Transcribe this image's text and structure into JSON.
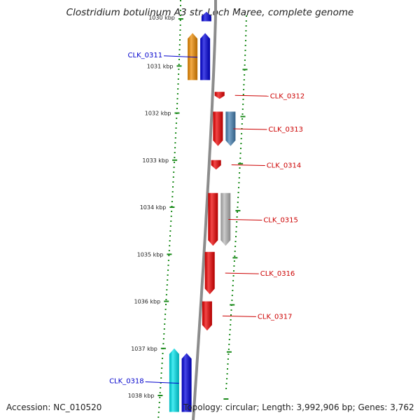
{
  "header": {
    "title": "Clostridium botulinum A3 str. Loch Maree, complete genome"
  },
  "footer": {
    "accession": "Accession: NC_010520",
    "topology": "Topology: circular; Length: 3,992,906 bp; Genes: 3,762"
  },
  "colors": {
    "forward_label": "#0000cc",
    "reverse_label": "#cc0000",
    "backbone": "#8c8c8c",
    "tick_green": "#1a8a1a"
  },
  "map": {
    "ticks": [
      {
        "label": "1030 kbp",
        "kbp": 1030
      },
      {
        "label": "1031 kbp",
        "kbp": 1031
      },
      {
        "label": "1032 kbp",
        "kbp": 1032
      },
      {
        "label": "1033 kbp",
        "kbp": 1033
      },
      {
        "label": "1034 kbp",
        "kbp": 1034
      },
      {
        "label": "1035 kbp",
        "kbp": 1035
      },
      {
        "label": "1036 kbp",
        "kbp": 1036
      },
      {
        "label": "1037 kbp",
        "kbp": 1037
      },
      {
        "label": "1038 kbp",
        "kbp": 1038
      }
    ],
    "genes": [
      {
        "id": "top-forward",
        "strand": "forward",
        "lane": 1,
        "start": 1029.85,
        "end": 1030.05,
        "color": "#0000dd",
        "label": ""
      },
      {
        "id": "orange",
        "strand": "forward",
        "lane": 2,
        "start": 1030.3,
        "end": 1031.3,
        "color": "#f08c00",
        "label": ""
      },
      {
        "id": "CLK_0311",
        "strand": "forward",
        "lane": 1,
        "start": 1030.3,
        "end": 1031.3,
        "color": "#0000dd",
        "label": "CLK_0311"
      },
      {
        "id": "CLK_0312",
        "strand": "reverse",
        "lane": 1,
        "start": 1031.55,
        "end": 1031.7,
        "color": "#ee0000",
        "label": "CLK_0312"
      },
      {
        "id": "CLK_0313",
        "strand": "reverse",
        "lane": 1,
        "start": 1031.97,
        "end": 1032.7,
        "color": "#ee0000",
        "label": "CLK_0313"
      },
      {
        "id": "steelblue",
        "strand": "reverse",
        "lane": 2,
        "start": 1031.97,
        "end": 1032.7,
        "color": "#4682b4",
        "label": ""
      },
      {
        "id": "CLK_0314",
        "strand": "reverse",
        "lane": 1,
        "start": 1033.0,
        "end": 1033.2,
        "color": "#ee0000",
        "label": "CLK_0314"
      },
      {
        "id": "CLK_0315",
        "strand": "reverse",
        "lane": 1,
        "start": 1033.7,
        "end": 1034.82,
        "color": "#ee0000",
        "label": "CLK_0315"
      },
      {
        "id": "gray",
        "strand": "reverse",
        "lane": 2,
        "start": 1033.7,
        "end": 1034.82,
        "color": "#b8b8b8",
        "label": ""
      },
      {
        "id": "CLK_0316",
        "strand": "reverse",
        "lane": 1,
        "start": 1034.95,
        "end": 1035.85,
        "color": "#ee0000",
        "label": "CLK_0316"
      },
      {
        "id": "CLK_0317",
        "strand": "reverse",
        "lane": 1,
        "start": 1036.0,
        "end": 1036.62,
        "color": "#ee0000",
        "label": "CLK_0317"
      },
      {
        "id": "cyan",
        "strand": "forward",
        "lane": 2,
        "start": 1037.0,
        "end": 1038.35,
        "color": "#00e5ee",
        "label": ""
      },
      {
        "id": "CLK_0318",
        "strand": "forward",
        "lane": 1,
        "start": 1037.1,
        "end": 1038.35,
        "color": "#0000dd",
        "label": "CLK_0318"
      }
    ]
  }
}
